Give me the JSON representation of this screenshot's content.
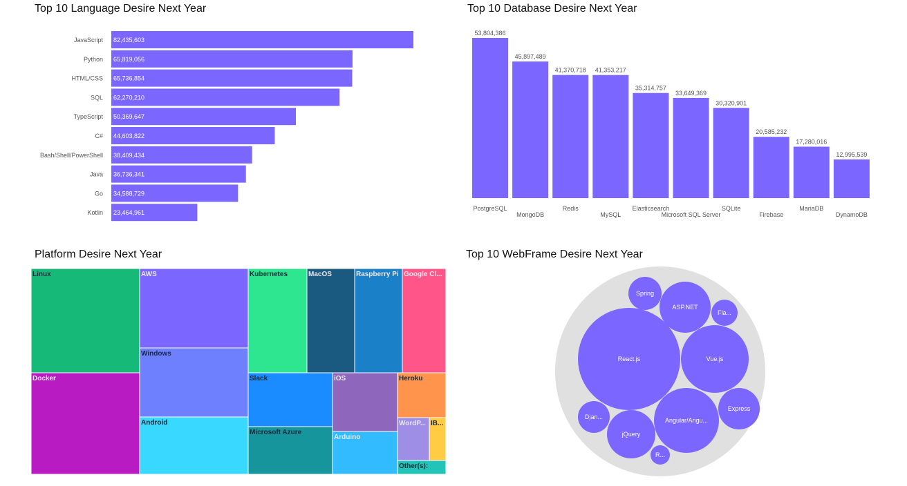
{
  "colors": {
    "accent": "#7b66ff",
    "label_text": "#555555",
    "bubble_bg": "#e0e0e0"
  },
  "chart_data": [
    {
      "type": "bar",
      "orientation": "horizontal",
      "title": "Top 10 Language Desire Next Year",
      "categories": [
        "JavaScript",
        "Python",
        "HTML/CSS",
        "SQL",
        "TypeScript",
        "C#",
        "Bash/Shell/PowerShell",
        "Java",
        "Go",
        "Kotlin"
      ],
      "values": [
        82435603,
        65819056,
        65736854,
        62270210,
        50369647,
        44603822,
        38409434,
        36736341,
        34588729,
        23464961
      ],
      "value_labels": [
        "82,435,603",
        "65,819,056",
        "65,736,854",
        "62,270,210",
        "50,369,647",
        "44,603,822",
        "38,409,434",
        "36,736,341",
        "34,588,729",
        "23,464,961"
      ],
      "xlim": [
        0,
        85000000
      ]
    },
    {
      "type": "bar",
      "orientation": "vertical",
      "title": "Top 10 Database Desire Next Year",
      "categories": [
        "PostgreSQL",
        "MongoDB",
        "Redis",
        "MySQL",
        "Elasticsearch",
        "Microsoft SQL Server",
        "SQLite",
        "Firebase",
        "MariaDB",
        "DynamoDB"
      ],
      "values": [
        53804386,
        45897489,
        41370718,
        41353217,
        35314757,
        33649369,
        30320901,
        20585232,
        17280016,
        12995539
      ],
      "value_labels": [
        "53,804,386",
        "45,897,489",
        "41,370,718",
        "41,353,217",
        "35,314,757",
        "33,649,369",
        "30,320,901",
        "20,585,232",
        "17,280,016",
        "12,995,539"
      ],
      "ylim": [
        0,
        54000000
      ]
    },
    {
      "type": "treemap",
      "title": "Platform Desire Next Year",
      "items": [
        {
          "name": "Linux",
          "label": "Linux",
          "color": "#17b978"
        },
        {
          "name": "Docker",
          "label": "Docker",
          "color": "#b81bc1"
        },
        {
          "name": "AWS",
          "label": "AWS",
          "color": "#7b66ff"
        },
        {
          "name": "Windows",
          "label": "Windows",
          "color": "#6f80ff"
        },
        {
          "name": "Android",
          "label": "Android",
          "color": "#39d8ff"
        },
        {
          "name": "Kubernetes",
          "label": "Kubernetes",
          "color": "#2ee68f"
        },
        {
          "name": "MacOS",
          "label": "MacOS",
          "color": "#1b5a80"
        },
        {
          "name": "Raspberry Pi",
          "label": "Raspberry Pi",
          "color": "#1a80c7"
        },
        {
          "name": "Google Cloud",
          "label": "Google Cl...",
          "color": "#ff5588"
        },
        {
          "name": "Slack",
          "label": "Slack",
          "color": "#1a8cff"
        },
        {
          "name": "Microsoft Azure",
          "label": "Microsoft Azure",
          "color": "#17959c"
        },
        {
          "name": "iOS",
          "label": "iOS",
          "color": "#8e66bb"
        },
        {
          "name": "Arduino",
          "label": "Arduino",
          "color": "#33bbff"
        },
        {
          "name": "Heroku",
          "label": "Heroku",
          "color": "#ff944d"
        },
        {
          "name": "WordPress",
          "label": "WordP...",
          "color": "#9e8ee6"
        },
        {
          "name": "IBM",
          "label": "IB...",
          "color": "#ffcc44"
        },
        {
          "name": "Other(s):",
          "label": "Other(s):",
          "color": "#22c4b8"
        }
      ]
    },
    {
      "type": "bubble",
      "title": "Top 10 WebFrame Desire Next Year",
      "items": [
        {
          "name": "React.js",
          "label": "React.js"
        },
        {
          "name": "Vue.js",
          "label": "Vue.js"
        },
        {
          "name": "Angular/Angular.js",
          "label": "Angular/Angu..."
        },
        {
          "name": "ASP.NET",
          "label": "ASP.NET"
        },
        {
          "name": "jQuery",
          "label": "jQuery"
        },
        {
          "name": "Express",
          "label": "Express"
        },
        {
          "name": "Spring",
          "label": "Spring"
        },
        {
          "name": "Django",
          "label": "Djan..."
        },
        {
          "name": "Flask",
          "label": "Fla..."
        },
        {
          "name": "Ruby on Rails",
          "label": "R..."
        }
      ]
    }
  ]
}
